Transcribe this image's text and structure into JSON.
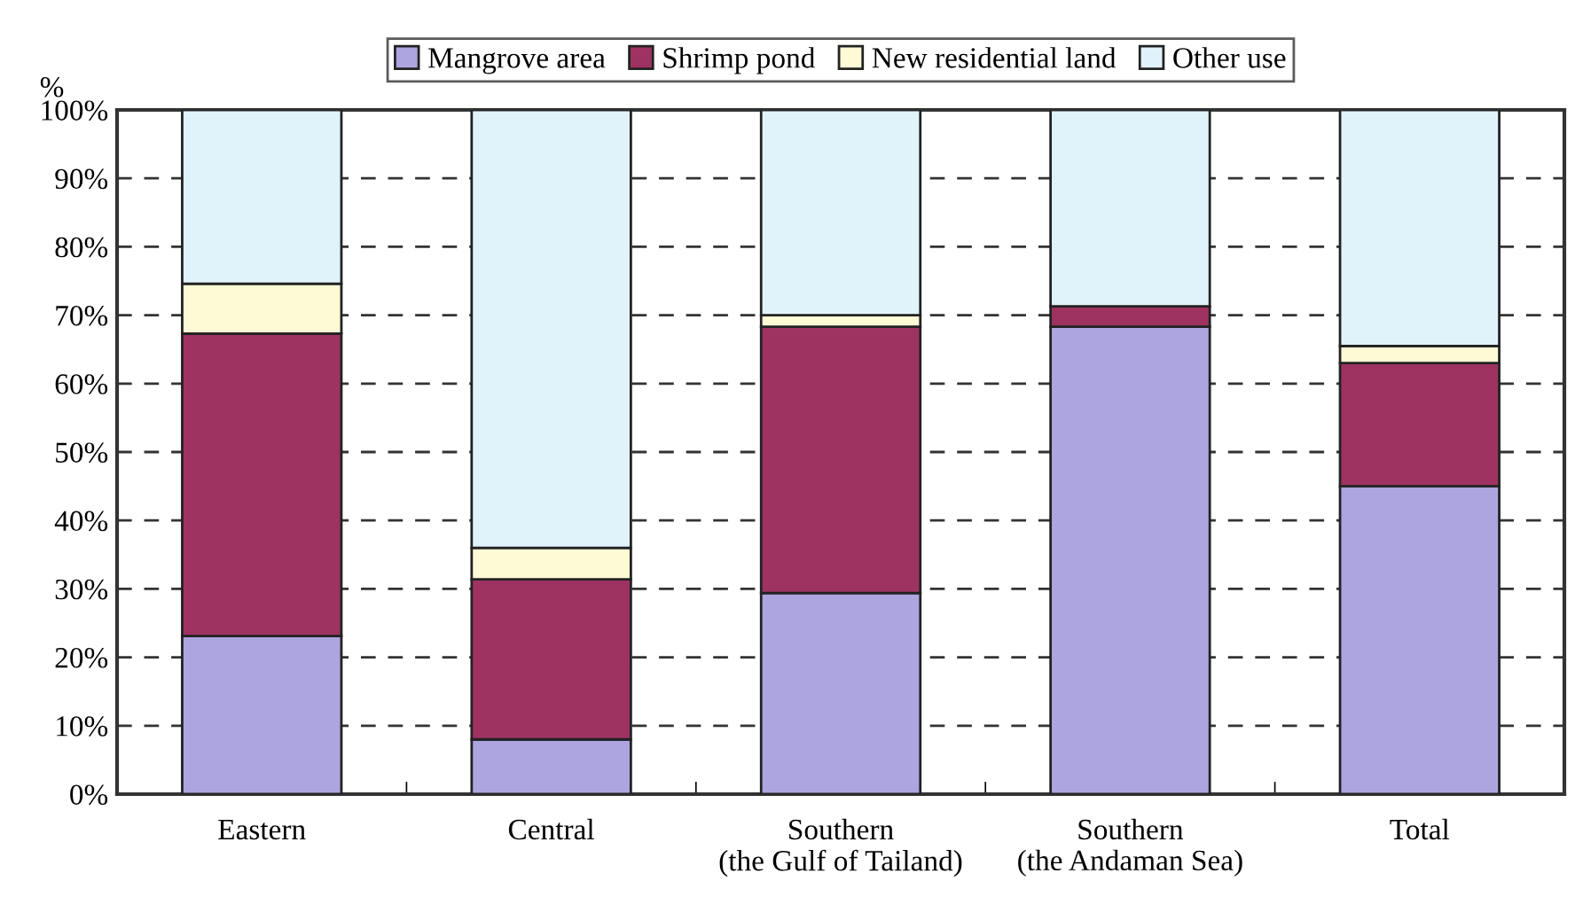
{
  "chart_data": {
    "type": "bar",
    "stacked": true,
    "ylabel": "%",
    "categories": [
      "Eastern",
      "Central",
      "Southern\n(the Gulf of Tailand)",
      "Southern\n(the Andaman Sea)",
      "Total"
    ],
    "series": [
      {
        "name": "Mangrove area",
        "color": "#ada5e0",
        "values": [
          23.1,
          8.0,
          29.4,
          68.3,
          45.0
        ]
      },
      {
        "name": "Shrimp pond",
        "color": "#9e3361",
        "values": [
          44.2,
          23.4,
          38.9,
          3.0,
          18.0
        ]
      },
      {
        "name": "New residential land",
        "color": "#fffad6",
        "values": [
          7.3,
          4.6,
          1.7,
          null,
          2.5
        ]
      },
      {
        "name": "Other use",
        "color": "#e1f3fa",
        "values": [
          25.4,
          64.0,
          30.0,
          28.7,
          34.5
        ]
      }
    ],
    "ylim": [
      0,
      100
    ],
    "yticks": [
      {
        "value": 0,
        "label": "0%"
      },
      {
        "value": 10,
        "label": "10%"
      },
      {
        "value": 20,
        "label": "20%"
      },
      {
        "value": 30,
        "label": "30%"
      },
      {
        "value": 40,
        "label": "40%"
      },
      {
        "value": 50,
        "label": "50%"
      },
      {
        "value": 60,
        "label": "60%"
      },
      {
        "value": 70,
        "label": "70%"
      },
      {
        "value": 80,
        "label": "80%"
      },
      {
        "value": 90,
        "label": "90%"
      },
      {
        "value": 100,
        "label": "100%"
      }
    ],
    "grid": "y",
    "line_style": "dashed",
    "legend": "top"
  }
}
